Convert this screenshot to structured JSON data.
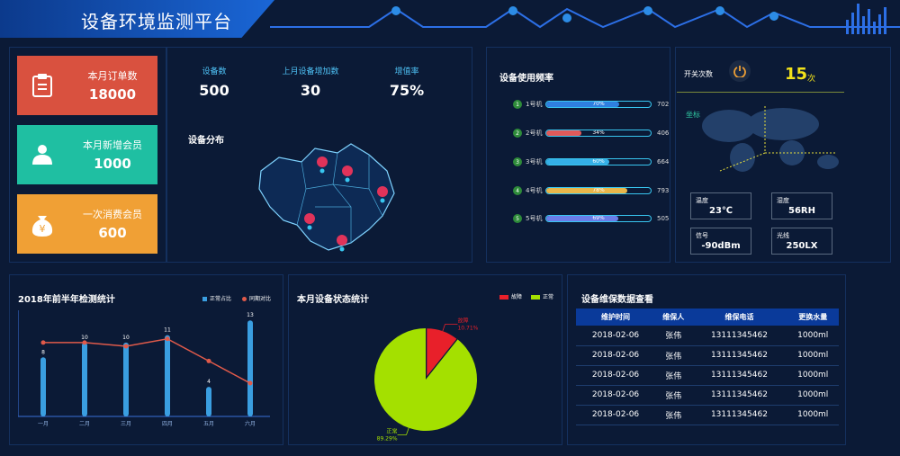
{
  "header": {
    "title": "设备环境监测平台"
  },
  "stats": [
    {
      "label": "本月订单数",
      "value": "18000",
      "color": "#d9513f",
      "icon": "clipboard-icon"
    },
    {
      "label": "本月新增会员",
      "value": "1000",
      "color": "#1fbfa2",
      "icon": "member-icon"
    },
    {
      "label": "一次消费会员",
      "value": "600",
      "color": "#f0a035",
      "icon": "money-bag-icon",
      "icon_char": "¥"
    }
  ],
  "kpis": [
    {
      "label": "设备数",
      "value": "500"
    },
    {
      "label": "上月设备增加数",
      "value": "30"
    },
    {
      "label": "增值率",
      "value": "75%"
    }
  ],
  "map": {
    "title": "设备分布"
  },
  "usage": {
    "title": "设备使用频率",
    "items": [
      {
        "num": "1",
        "name": "1号机",
        "pct": 70,
        "pct_label": "70%",
        "count": "702",
        "color": "#2f7fe0"
      },
      {
        "num": "2",
        "name": "2号机",
        "pct": 34,
        "pct_label": "34%",
        "count": "406",
        "color": "#e05a5a"
      },
      {
        "num": "3",
        "name": "3号机",
        "pct": 60,
        "pct_label": "60%",
        "count": "664",
        "color": "#35b0e8"
      },
      {
        "num": "4",
        "name": "4号机",
        "pct": 78,
        "pct_label": "78%",
        "count": "793",
        "color": "#e8b64a"
      },
      {
        "num": "5",
        "name": "5号机",
        "pct": 69,
        "pct_label": "69%",
        "count": "505",
        "color": "#6b7de8"
      }
    ]
  },
  "switch": {
    "label": "开关次数",
    "value": "15",
    "unit": "次"
  },
  "coord": {
    "label": "坐标"
  },
  "sensors": [
    {
      "label": "温度",
      "value": "23℃"
    },
    {
      "label": "湿度",
      "value": "56RH"
    },
    {
      "label": "信号",
      "value": "-90dBm"
    },
    {
      "label": "光线",
      "value": "250LX"
    }
  ],
  "line_chart": {
    "title": "2018年前半年检测统计",
    "legend": [
      "正常占比",
      "同期对比"
    ],
    "chart_data": {
      "type": "bar",
      "categories": [
        "一月",
        "二月",
        "三月",
        "四月",
        "五月",
        "六月"
      ],
      "series": [
        {
          "name": "正常占比",
          "values": [
            8,
            10,
            10,
            11,
            4,
            13
          ],
          "color": "#3a9ee0"
        },
        {
          "name": "同期对比",
          "values": [
            10,
            10,
            9.5,
            10.5,
            7.5,
            4.5
          ],
          "color": "#e05a4a"
        }
      ],
      "ylim": [
        0,
        14
      ]
    }
  },
  "pie_chart": {
    "title": "本月设备状态统计",
    "legend": [
      "故障",
      "正常"
    ],
    "chart_data": {
      "type": "pie",
      "slices": [
        {
          "name": "故障",
          "value": 10.71,
          "label": "10.71%",
          "color": "#e8202a"
        },
        {
          "name": "正常",
          "value": 89.29,
          "label": "89.29%",
          "color": "#a4e000"
        }
      ]
    }
  },
  "maintenance": {
    "title": "设备维保数据查看",
    "headers": [
      "维护时间",
      "维保人",
      "维保电话",
      "更换水量"
    ],
    "rows": [
      [
        "2018-02-06",
        "张伟",
        "13111345462",
        "1000ml"
      ],
      [
        "2018-02-06",
        "张伟",
        "13111345462",
        "1000ml"
      ],
      [
        "2018-02-06",
        "张伟",
        "13111345462",
        "1000ml"
      ],
      [
        "2018-02-06",
        "张伟",
        "13111345462",
        "1000ml"
      ],
      [
        "2018-02-06",
        "张伟",
        "13111345462",
        "1000ml"
      ]
    ]
  }
}
